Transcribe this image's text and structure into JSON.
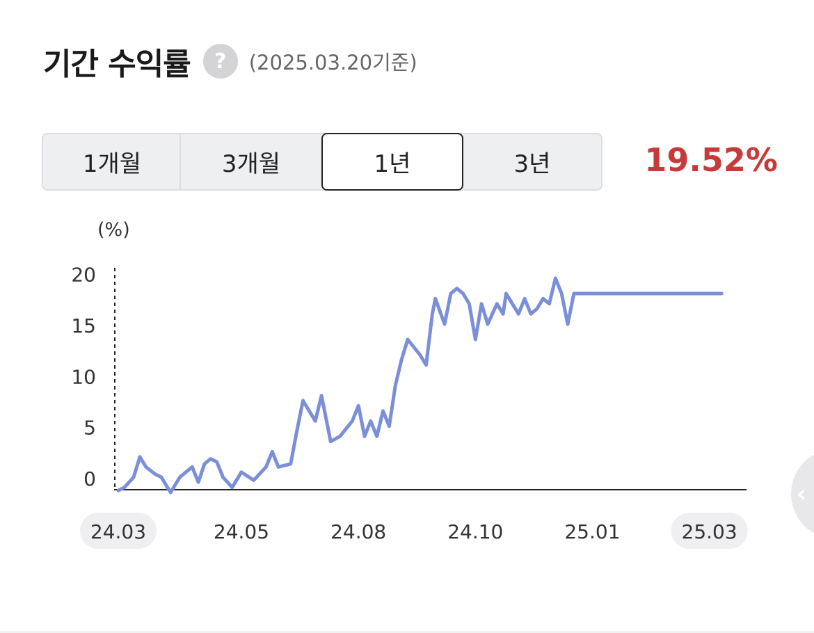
{
  "header": {
    "title": "기간 수익률",
    "help_icon": "?",
    "basis": "(2025.03.20기준)"
  },
  "tabs": [
    {
      "label": "1개월",
      "active": false
    },
    {
      "label": "3개월",
      "active": false
    },
    {
      "label": "1년",
      "active": true
    },
    {
      "label": "3년",
      "active": false
    }
  ],
  "return_value": "19.52%",
  "colors": {
    "line": "#7b8fd8",
    "return": "#c73a3a",
    "tab_active_border": "#222222"
  },
  "handle_icon": "chevron-left-icon",
  "chart_data": {
    "type": "line",
    "ylabel": "(%)",
    "ylim": [
      0,
      21
    ],
    "yticks": [
      0,
      5,
      10,
      15,
      20
    ],
    "xlim": [
      0,
      100
    ],
    "xticks": [
      {
        "x": 0,
        "label": "24.03",
        "highlight": true
      },
      {
        "x": 20,
        "label": "24.05",
        "highlight": false
      },
      {
        "x": 39,
        "label": "24.08",
        "highlight": false
      },
      {
        "x": 58,
        "label": "24.10",
        "highlight": false
      },
      {
        "x": 77,
        "label": "25.01",
        "highlight": false
      },
      {
        "x": 96,
        "label": "25.03",
        "highlight": true
      }
    ],
    "grid": false,
    "series": [
      {
        "color": "#7b8fd8",
        "x": [
          0,
          1,
          2.5,
          3.5,
          4.5,
          6,
          7,
          8.5,
          10,
          12,
          13,
          14,
          15,
          16,
          17,
          18.5,
          20,
          22,
          24,
          25,
          26,
          28,
          29,
          30,
          32,
          33,
          34.5,
          36,
          38,
          39,
          40,
          41,
          42,
          43,
          44,
          45,
          46,
          47,
          49,
          50,
          51,
          51.5,
          53,
          54,
          55,
          56,
          57,
          58,
          59,
          60,
          61.5,
          62.5,
          63,
          64,
          65,
          66,
          67,
          68,
          69,
          70,
          71,
          72,
          73,
          74,
          75,
          76,
          77,
          78,
          79,
          80,
          81,
          82,
          83,
          84,
          85,
          86,
          87,
          88,
          89,
          90,
          91,
          92,
          93,
          94,
          95,
          96,
          97,
          98
        ],
        "values": [
          0.2,
          0.5,
          1.5,
          3.5,
          2.5,
          1.8,
          1.5,
          0.0,
          1.5,
          2.5,
          1.0,
          2.8,
          3.3,
          3.0,
          1.5,
          0.5,
          2.0,
          1.2,
          2.5,
          4.0,
          2.5,
          2.8,
          6.0,
          9.0,
          7.0,
          9.5,
          5.0,
          5.5,
          7.0,
          8.5,
          5.5,
          7.0,
          5.5,
          8.0,
          6.5,
          10.5,
          13.0,
          15.0,
          13.5,
          12.5,
          17.5,
          19.0,
          16.5,
          19.5,
          20.0,
          19.5,
          18.5,
          15.0,
          18.5,
          16.5,
          18.5,
          17.5,
          19.5,
          18.5,
          17.5,
          19.0,
          17.5,
          18.0,
          19.0,
          18.5,
          21.0,
          19.5,
          16.5,
          19.5,
          19.5,
          19.5,
          19.5,
          19.5,
          19.5,
          19.5,
          19.5,
          19.5,
          19.5,
          19.5,
          19.5,
          19.5,
          19.5,
          19.5,
          19.5,
          19.5,
          19.5,
          19.5,
          19.5,
          19.5,
          19.5,
          19.5,
          19.5,
          19.5
        ]
      }
    ]
  }
}
